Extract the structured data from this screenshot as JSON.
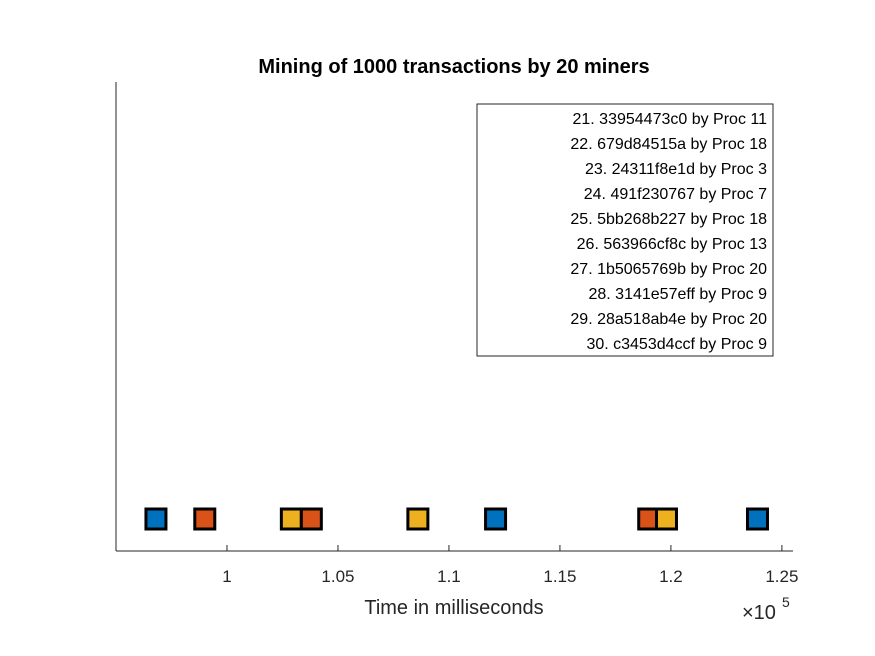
{
  "chart_data": {
    "type": "scatter",
    "title": "Mining of 1000 transactions by 20 miners",
    "xlabel": "Time in milliseconds",
    "ylabel": "",
    "x_exponent_label": "×10",
    "x_exponent_power": "5",
    "xlim": [
      95000,
      125500
    ],
    "x_ticks": [
      100000,
      105000,
      110000,
      115000,
      120000,
      125000
    ],
    "x_tick_labels": [
      "1",
      "1.05",
      "1.1",
      "1.15",
      "1.2",
      "1.25"
    ],
    "grid": false,
    "legend_position": "top-right",
    "legend": [
      "21. 33954473c0 by Proc 11",
      "22. 679d84515a by Proc 18",
      "23. 24311f8e1d by Proc 3",
      "24. 491f230767 by Proc 7",
      "25. 5bb268b227 by Proc 18",
      "26. 563966cf8c by Proc 13",
      "27. 1b5065769b by Proc 20",
      "28. 3141e57eff by Proc 9",
      "29. 28a518ab4e by Proc 20",
      "30. c3453d4ccf by Proc 9"
    ],
    "colors": [
      "#0072BD",
      "#D95319",
      "#EDB120"
    ],
    "points": [
      {
        "x": 96800,
        "color": "#0072BD"
      },
      {
        "x": 99000,
        "color": "#D95319"
      },
      {
        "x": 102900,
        "color": "#EDB120"
      },
      {
        "x": 103800,
        "color": "#D95319"
      },
      {
        "x": 108600,
        "color": "#EDB120"
      },
      {
        "x": 112100,
        "color": "#0072BD"
      },
      {
        "x": 119000,
        "color": "#D95319"
      },
      {
        "x": 119800,
        "color": "#EDB120"
      },
      {
        "x": 123900,
        "color": "#0072BD"
      }
    ]
  }
}
